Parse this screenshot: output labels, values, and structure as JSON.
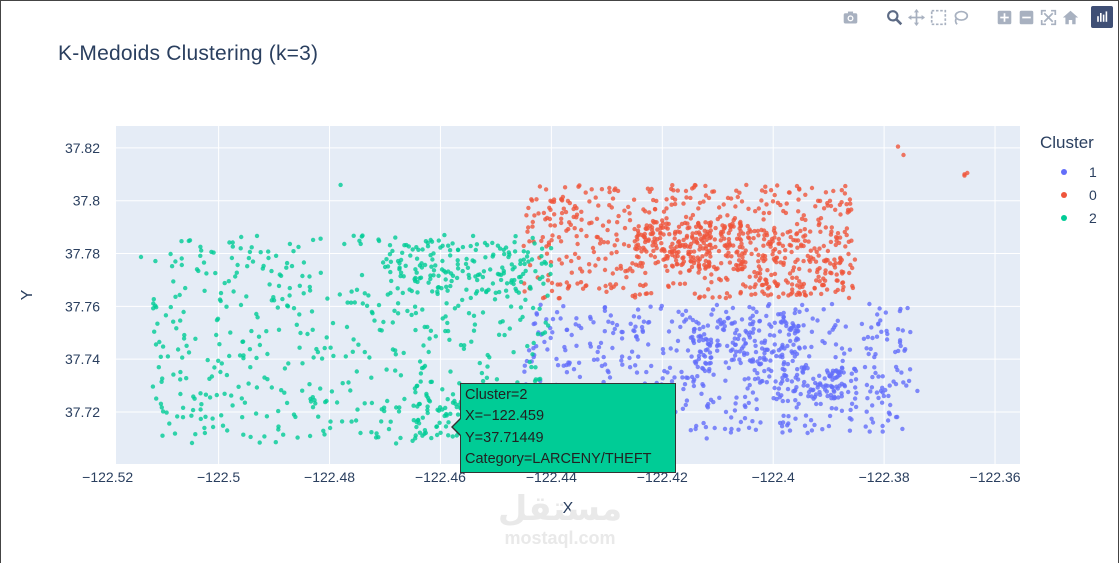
{
  "title": "K-Medoids Clustering (k=3)",
  "colors": {
    "plot_bg": "#e5ecf6",
    "grid": "#ffffff",
    "text": "#2a3f5f",
    "icon": "#a8b1c0",
    "icon_active": "#5d6b85"
  },
  "modebar": {
    "buttons": [
      {
        "icon": "camera-icon",
        "label": "Download plot as a png"
      },
      {
        "icon": "zoom-icon",
        "label": "Zoom"
      },
      {
        "icon": "pan-icon",
        "label": "Pan"
      },
      {
        "icon": "box-select-icon",
        "label": "Box Select"
      },
      {
        "icon": "lasso-select-icon",
        "label": "Lasso Select"
      },
      {
        "icon": "zoom-in-icon",
        "label": "Zoom in"
      },
      {
        "icon": "zoom-out-icon",
        "label": "Zoom out"
      },
      {
        "icon": "autoscale-icon",
        "label": "Autoscale"
      },
      {
        "icon": "reset-axes-icon",
        "label": "Reset axes"
      },
      {
        "icon": "plotly-logo-icon",
        "label": "Produced with Plotly"
      }
    ]
  },
  "legend": {
    "title": "Cluster",
    "items": [
      {
        "label": "1",
        "color": "#636efa"
      },
      {
        "label": "0",
        "color": "#ef553b"
      },
      {
        "label": "2",
        "color": "#00cc96"
      }
    ]
  },
  "tooltip": {
    "lines": [
      "Cluster=2",
      "X=−122.459",
      "Y=37.71449",
      "Category=LARCENY/THEFT"
    ]
  },
  "watermark": {
    "logo": "مستقل",
    "url": "mostaql.com"
  },
  "chart_data": {
    "type": "scatter",
    "title": "K-Medoids Clustering (k=3)",
    "xlabel": "X",
    "ylabel": "Y",
    "xlim": [
      -122.5185,
      -122.3555
    ],
    "ylim": [
      37.7003,
      37.8283
    ],
    "xticks": [
      -122.52,
      -122.5,
      -122.48,
      -122.46,
      -122.44,
      -122.42,
      -122.4,
      -122.38,
      -122.36
    ],
    "xtick_labels": [
      "−122.52",
      "−122.5",
      "−122.48",
      "−122.46",
      "−122.44",
      "−122.42",
      "−122.4",
      "−122.38",
      "−122.36"
    ],
    "yticks": [
      37.72,
      37.74,
      37.76,
      37.78,
      37.8,
      37.82
    ],
    "ytick_labels": [
      "37.72",
      "37.74",
      "37.76",
      "37.78",
      "37.8",
      "37.82"
    ],
    "grid": true,
    "legend_position": "right",
    "series": [
      {
        "name": "1",
        "color": "#636efa",
        "regions": [
          {
            "x": [
              -122.445,
              -122.375
            ],
            "y": [
              37.712,
              37.761
            ],
            "density": 2200
          },
          {
            "x": [
              -122.415,
              -122.395
            ],
            "y": [
              37.738,
              37.755
            ],
            "density": 500
          },
          {
            "x": [
              -122.4,
              -122.385
            ],
            "y": [
              37.725,
              37.738
            ],
            "density": 300
          }
        ],
        "x": [
          -122.374,
          -122.376,
          -122.379,
          -122.438,
          -122.412
        ],
        "y": [
          37.728,
          37.73,
          37.73,
          37.712,
          37.71
        ]
      },
      {
        "name": "0",
        "color": "#ef553b",
        "regions": [
          {
            "x": [
              -122.445,
              -122.385
            ],
            "y": [
              37.763,
              37.806
            ],
            "density": 2000
          },
          {
            "x": [
              -122.425,
              -122.405
            ],
            "y": [
              37.774,
              37.792
            ],
            "density": 900
          },
          {
            "x": [
              -122.405,
              -122.387
            ],
            "y": [
              37.764,
              37.79
            ],
            "density": 500
          }
        ],
        "x": [
          -122.3775,
          -122.3765,
          -122.3655,
          -122.365,
          -122.3655
        ],
        "y": [
          37.8205,
          37.8173,
          37.81,
          37.8105,
          37.8095
        ]
      },
      {
        "name": "2",
        "color": "#00cc96",
        "regions": [
          {
            "x": [
              -122.512,
              -122.44
            ],
            "y": [
              37.708,
              37.787
            ],
            "density": 2100
          },
          {
            "x": [
              -122.47,
              -122.44
            ],
            "y": [
              37.765,
              37.785
            ],
            "density": 500
          },
          {
            "x": [
              -122.465,
              -122.445
            ],
            "y": [
              37.71,
              37.725
            ],
            "density": 400
          }
        ],
        "x": [
          -122.514,
          -122.501,
          -122.459,
          -122.478
        ],
        "y": [
          37.7787,
          37.7143,
          37.71449,
          37.806
        ]
      }
    ]
  }
}
